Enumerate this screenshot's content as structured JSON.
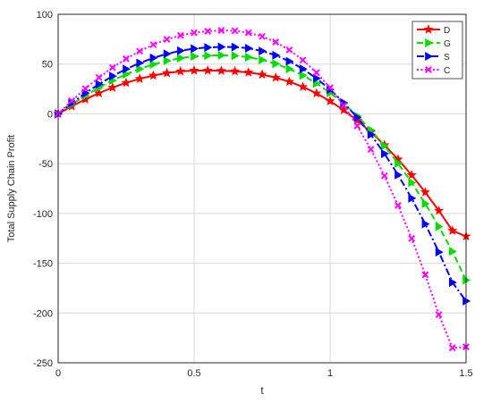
{
  "chart_data": {
    "type": "line",
    "xlabel": "t",
    "ylabel": "Total Supply Chain Profit",
    "xlim": [
      0,
      1.5
    ],
    "ylim": [
      -250,
      100
    ],
    "xticks": [
      0,
      0.5,
      1,
      1.5
    ],
    "xtick_labels": [
      "0",
      "0.5",
      "1",
      "1.5"
    ],
    "yticks": [
      100,
      50,
      0,
      -50,
      -100,
      -150,
      -200,
      -250
    ],
    "ytick_labels": [
      "100",
      "50",
      "0",
      "-50",
      "-100",
      "-150",
      "-200",
      "-250"
    ],
    "grid": true,
    "legend_position": "top-right",
    "x": [
      0,
      0.05,
      0.1,
      0.15,
      0.2,
      0.25,
      0.3,
      0.35,
      0.4,
      0.45,
      0.5,
      0.55,
      0.6,
      0.65,
      0.7,
      0.75,
      0.8,
      0.85,
      0.9,
      0.95,
      1.0,
      1.05,
      1.1,
      1.15,
      1.2,
      1.25,
      1.3,
      1.35,
      1.4,
      1.45,
      1.5
    ],
    "series": [
      {
        "name": "D",
        "color": "#ff0000",
        "line": "solid",
        "marker": "star",
        "values": [
          0,
          7.6,
          14.6,
          20.8,
          26.4,
          31.2,
          35.2,
          38.5,
          41.0,
          42.7,
          43.5,
          43.5,
          43.3,
          42.8,
          41.6,
          39.5,
          36.4,
          32.3,
          27.1,
          20.6,
          12.8,
          3.8,
          -6.6,
          -18.3,
          -31.3,
          -45.7,
          -61.5,
          -78.7,
          -97.3,
          -117.3,
          -123
        ]
      },
      {
        "name": "G",
        "color": "#00dd00",
        "line": "dashed",
        "marker": "triangle-right",
        "values": [
          0,
          9.5,
          18.3,
          26.3,
          33.5,
          39.8,
          45.2,
          49.7,
          53.3,
          56.0,
          57.7,
          58.5,
          58.8,
          58.4,
          56.9,
          54.2,
          50.3,
          45.1,
          38.6,
          30.6,
          21.2,
          10.3,
          -2.2,
          -16.3,
          -32.1,
          -49.7,
          -69.0,
          -90.2,
          -113.2,
          -138.2,
          -167
        ]
      },
      {
        "name": "S",
        "color": "#0000ff",
        "line": "dashdot",
        "marker": "triangle-right",
        "values": [
          0,
          10.8,
          20.8,
          29.8,
          37.9,
          45.0,
          51.1,
          56.2,
          60.3,
          63.4,
          65.5,
          66.7,
          67.2,
          67.1,
          65.9,
          63.1,
          58.8,
          52.8,
          45.1,
          35.6,
          24.4,
          11.3,
          -3.7,
          -20.8,
          -40.0,
          -61.3,
          -84.8,
          -110.6,
          -138.8,
          -169.3,
          -188
        ]
      },
      {
        "name": "C",
        "color": "#ff00ff",
        "line": "dotted",
        "marker": "x",
        "values": [
          0,
          13.2,
          25.4,
          36.5,
          46.5,
          55.3,
          63.0,
          69.5,
          74.8,
          78.8,
          81.5,
          83.0,
          83.8,
          83.4,
          81.5,
          77.8,
          72.1,
          64.2,
          54.0,
          41.4,
          26.3,
          8.5,
          -12.1,
          -35.6,
          -62.2,
          -92.0,
          -125.1,
          -161.6,
          -201.6,
          -235.0,
          -234
        ]
      }
    ]
  }
}
